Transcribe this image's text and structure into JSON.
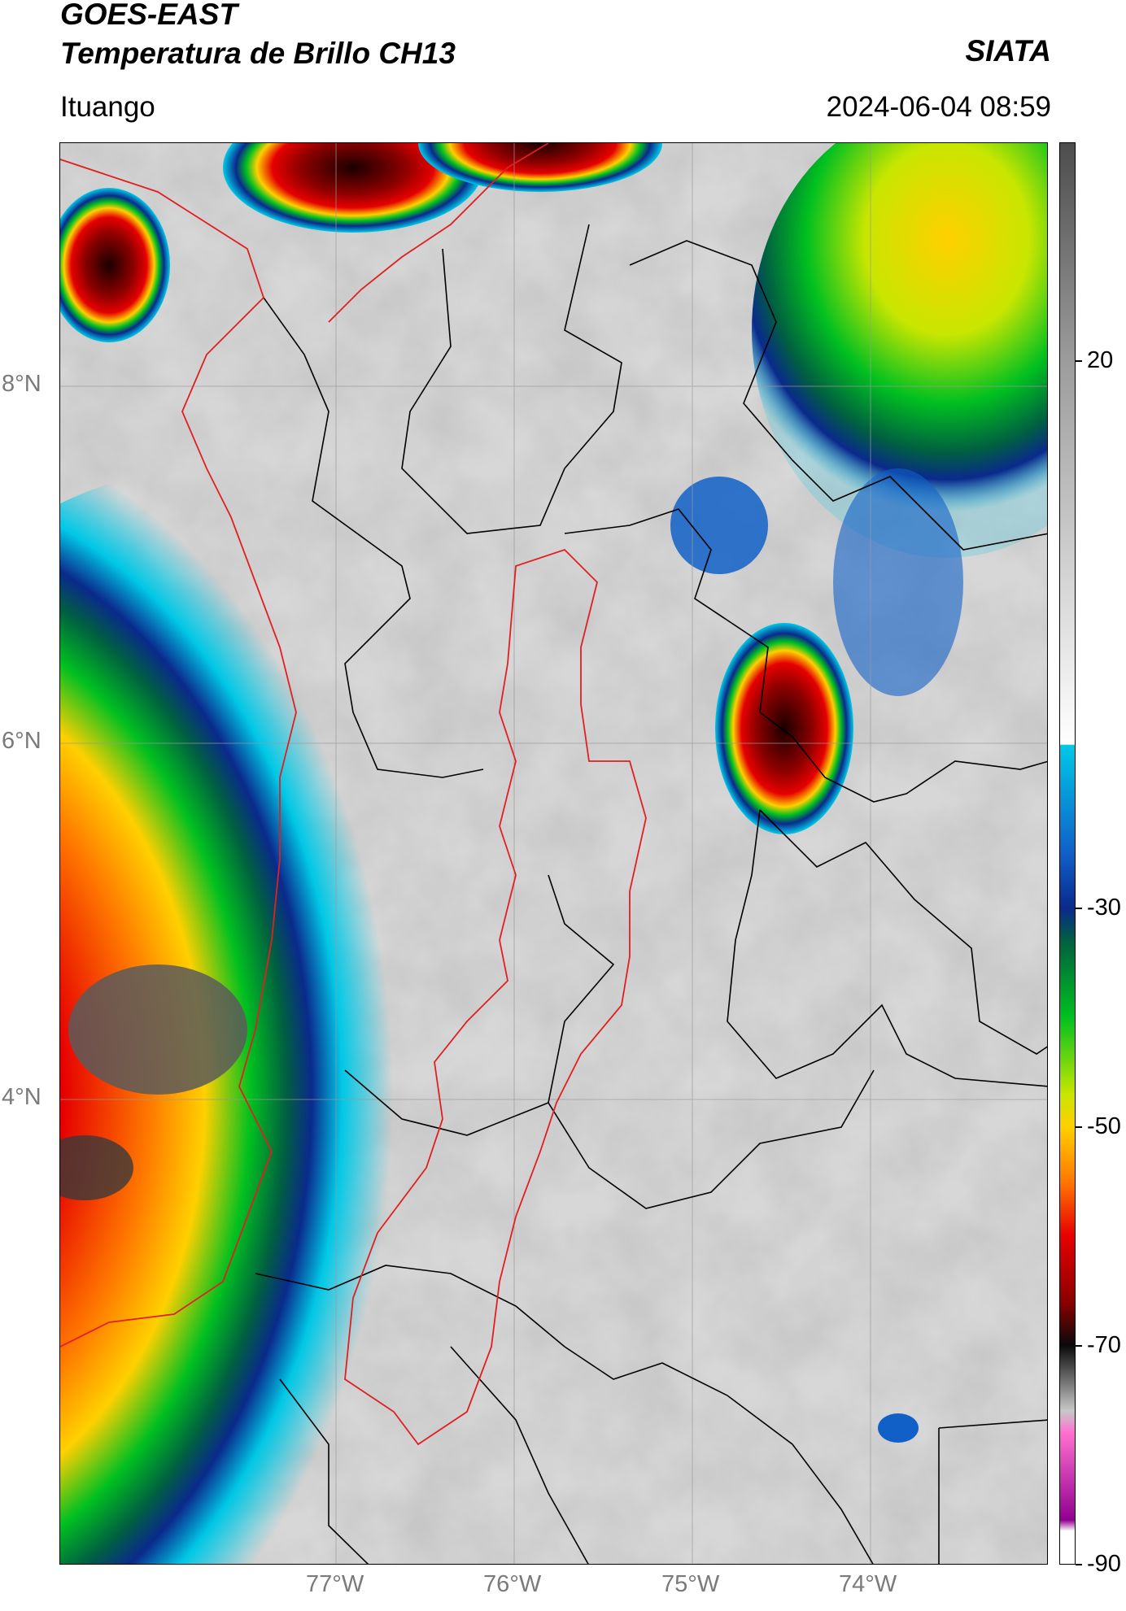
{
  "header": {
    "title_line1": "GOES-EAST",
    "title_line2": "Temperatura de Brillo CH13",
    "location": "Ituango",
    "organization": "SIATA",
    "timestamp": "2024-06-04 08:59"
  },
  "map": {
    "lat_ticks": [
      "8°N",
      "6°N",
      "4°N"
    ],
    "lon_ticks": [
      "77°W",
      "76°W",
      "75°W",
      "74°W"
    ],
    "extent": {
      "lon": [
        -78.55,
        -73.0
      ],
      "lat": [
        2.0,
        9.55
      ]
    },
    "colors": {
      "country_border": "#e02020",
      "admin_border": "#000000",
      "gridline": "#9a9a9a"
    }
  },
  "colorbar": {
    "tick_labels": [
      "20",
      "-30",
      "-50",
      "-70",
      "-90"
    ],
    "tick_values": [
      20,
      -30,
      -50,
      -70,
      -90
    ],
    "range": [
      -90,
      40
    ],
    "stops": [
      {
        "v": 40,
        "c": "#4d4d4d"
      },
      {
        "v": 20,
        "c": "#9c9c9c"
      },
      {
        "v": -15,
        "c": "#ffffff"
      },
      {
        "v": -15.1,
        "c": "#00c8e6"
      },
      {
        "v": -25,
        "c": "#1060c8"
      },
      {
        "v": -30,
        "c": "#0a2a8c"
      },
      {
        "v": -33,
        "c": "#006040"
      },
      {
        "v": -40,
        "c": "#00c020"
      },
      {
        "v": -47,
        "c": "#c8e600"
      },
      {
        "v": -50,
        "c": "#ffd000"
      },
      {
        "v": -55,
        "c": "#ff7800"
      },
      {
        "v": -60,
        "c": "#e60000"
      },
      {
        "v": -66,
        "c": "#8c0000"
      },
      {
        "v": -70,
        "c": "#0a0a0a"
      },
      {
        "v": -76,
        "c": "#c8c8c8"
      },
      {
        "v": -78,
        "c": "#ff70d0"
      },
      {
        "v": -86,
        "c": "#900090"
      },
      {
        "v": -87,
        "c": "#ffffff"
      }
    ]
  }
}
